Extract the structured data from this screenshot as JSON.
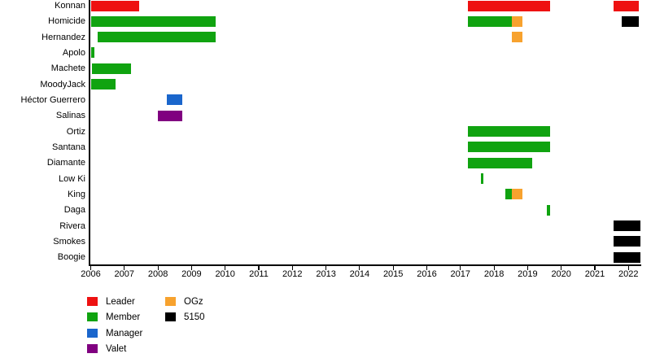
{
  "chart_data": {
    "type": "timeline",
    "x_axis": {
      "min": 2006,
      "max": 2022.35,
      "tick_years": [
        2006,
        2007,
        2008,
        2009,
        2010,
        2011,
        2012,
        2013,
        2014,
        2015,
        2016,
        2017,
        2018,
        2019,
        2020,
        2021,
        2022
      ]
    },
    "roles": [
      {
        "key": "leader",
        "label": "Leader",
        "color": "#ee1111"
      },
      {
        "key": "member",
        "label": "Member",
        "color": "#10a310"
      },
      {
        "key": "manager",
        "label": "Manager",
        "color": "#1a66cc"
      },
      {
        "key": "valet",
        "label": "Valet",
        "color": "#800080"
      },
      {
        "key": "ogz",
        "label": "OGz",
        "color": "#f7a22e"
      },
      {
        "key": "s5150",
        "label": "5150",
        "color": "#000000"
      }
    ],
    "legend_columns": [
      [
        "leader",
        "member",
        "manager",
        "valet"
      ],
      [
        "ogz",
        "s5150"
      ]
    ],
    "rows": [
      {
        "name": "Konnan",
        "segments": [
          {
            "start": 2006.0,
            "end": 2007.43,
            "role": "leader"
          },
          {
            "start": 2017.22,
            "end": 2019.68,
            "role": "leader"
          },
          {
            "start": 2021.56,
            "end": 2022.3,
            "role": "leader"
          }
        ]
      },
      {
        "name": "Homicide",
        "segments": [
          {
            "start": 2006.0,
            "end": 2009.72,
            "role": "member"
          },
          {
            "start": 2017.22,
            "end": 2018.53,
            "role": "member"
          },
          {
            "start": 2018.53,
            "end": 2018.84,
            "role": "ogz"
          },
          {
            "start": 2021.8,
            "end": 2022.3,
            "role": "s5150"
          }
        ]
      },
      {
        "name": "Hernandez",
        "segments": [
          {
            "start": 2006.21,
            "end": 2009.72,
            "role": "member"
          },
          {
            "start": 2018.53,
            "end": 2018.84,
            "role": "ogz"
          }
        ]
      },
      {
        "name": "Apolo",
        "segments": [
          {
            "start": 2006.0,
            "end": 2006.12,
            "role": "member"
          }
        ]
      },
      {
        "name": "Machete",
        "segments": [
          {
            "start": 2006.04,
            "end": 2007.21,
            "role": "member"
          }
        ]
      },
      {
        "name": "MoodyJack",
        "segments": [
          {
            "start": 2006.0,
            "end": 2006.74,
            "role": "member"
          }
        ]
      },
      {
        "name": "Héctor Guerrero",
        "segments": [
          {
            "start": 2008.26,
            "end": 2008.73,
            "role": "manager"
          }
        ]
      },
      {
        "name": "Salinas",
        "segments": [
          {
            "start": 2008.0,
            "end": 2008.73,
            "role": "valet"
          }
        ]
      },
      {
        "name": "Ortiz",
        "segments": [
          {
            "start": 2017.22,
            "end": 2019.68,
            "role": "member"
          }
        ]
      },
      {
        "name": "Santana",
        "segments": [
          {
            "start": 2017.22,
            "end": 2019.68,
            "role": "member"
          }
        ]
      },
      {
        "name": "Diamante",
        "segments": [
          {
            "start": 2017.22,
            "end": 2019.14,
            "role": "member"
          }
        ]
      },
      {
        "name": "Low Ki",
        "segments": [
          {
            "start": 2017.6,
            "end": 2017.68,
            "role": "member"
          }
        ]
      },
      {
        "name": "King",
        "segments": [
          {
            "start": 2018.33,
            "end": 2018.53,
            "role": "member"
          },
          {
            "start": 2018.53,
            "end": 2018.84,
            "role": "ogz"
          }
        ]
      },
      {
        "name": "Daga",
        "segments": [
          {
            "start": 2019.58,
            "end": 2019.67,
            "role": "member"
          }
        ]
      },
      {
        "name": "Rivera",
        "segments": [
          {
            "start": 2021.55,
            "end": 2022.35,
            "role": "s5150"
          }
        ]
      },
      {
        "name": "Smokes",
        "segments": [
          {
            "start": 2021.55,
            "end": 2022.35,
            "role": "s5150"
          }
        ]
      },
      {
        "name": "Boogie",
        "segments": [
          {
            "start": 2021.55,
            "end": 2022.35,
            "role": "s5150"
          }
        ]
      }
    ]
  }
}
